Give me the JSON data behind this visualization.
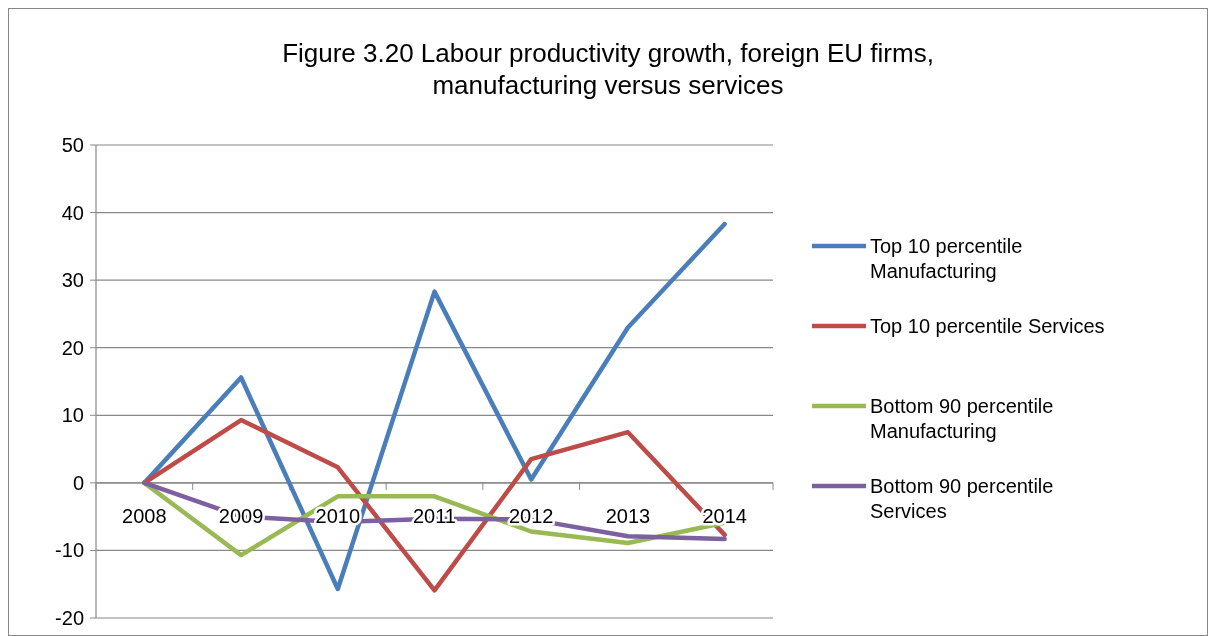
{
  "chart_data": {
    "type": "line",
    "title": "Figure 3.20 Labour productivity growth, foreign EU firms, manufacturing versus services",
    "categories": [
      "2008",
      "2009",
      "2010",
      "2011",
      "2012",
      "2013",
      "2014"
    ],
    "series": [
      {
        "name": "Top 10 percentile Manufacturing",
        "color": "#4a7ebb",
        "values": [
          0,
          15.6,
          -15.7,
          28.3,
          0.5,
          23.0,
          38.3
        ]
      },
      {
        "name": "Top 10 percentile Services",
        "color": "#be4b48",
        "values": [
          0,
          9.3,
          2.3,
          -15.9,
          3.5,
          7.5,
          -7.7
        ]
      },
      {
        "name": "Bottom 90 percentile Manufacturing",
        "color": "#98b954",
        "values": [
          0,
          -10.7,
          -2.0,
          -2.0,
          -7.2,
          -8.9,
          -5.9
        ]
      },
      {
        "name": "Bottom 90 percentile Services",
        "color": "#7d60a0",
        "values": [
          0,
          -5.0,
          -5.8,
          -5.3,
          -5.4,
          -7.9,
          -8.3
        ]
      }
    ],
    "ylim": [
      -20,
      50
    ],
    "yticks": [
      -20,
      -10,
      0,
      10,
      20,
      30,
      40,
      50
    ],
    "grid": "y",
    "legend": "right",
    "marker": "none",
    "line_style": "solid"
  }
}
